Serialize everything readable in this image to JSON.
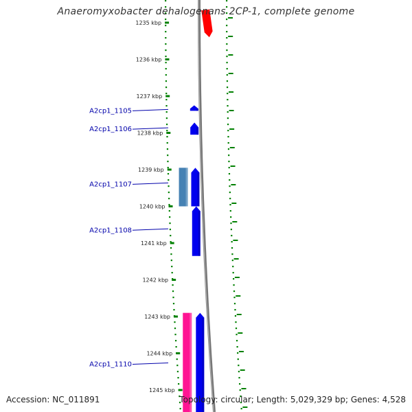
{
  "title": "Anaeromyxobacter dehalogenans 2CP-1, complete genome",
  "footer": {
    "accession": "Accession: NC_011891",
    "summary": "Topology: circular; Length: 5,029,329 bp; Genes: 4,528"
  },
  "scale_ticks": [
    {
      "label": "1235 kbp",
      "kbp": 1235
    },
    {
      "label": "1236 kbp",
      "kbp": 1236
    },
    {
      "label": "1237 kbp",
      "kbp": 1237
    },
    {
      "label": "1238 kbp",
      "kbp": 1238
    },
    {
      "label": "1239 kbp",
      "kbp": 1239
    },
    {
      "label": "1240 kbp",
      "kbp": 1240
    },
    {
      "label": "1241 kbp",
      "kbp": 1241
    },
    {
      "label": "1242 kbp",
      "kbp": 1242
    },
    {
      "label": "1243 kbp",
      "kbp": 1243
    },
    {
      "label": "1244 kbp",
      "kbp": 1244
    },
    {
      "label": "1245 kbp",
      "kbp": 1245
    }
  ],
  "gene_labels": [
    {
      "label": "A2cp1_1105",
      "kbp": 1237.4
    },
    {
      "label": "A2cp1_1106",
      "kbp": 1237.9
    },
    {
      "label": "A2cp1_1107",
      "kbp": 1239.4
    },
    {
      "label": "A2cp1_1108",
      "kbp": 1240.65
    },
    {
      "label": "A2cp1_1110",
      "kbp": 1244.3
    }
  ],
  "features": [
    {
      "track": "top",
      "start_kbp": 1234.65,
      "end_kbp": 1235.4,
      "color": "#ff0000",
      "strand": "reverse"
    },
    {
      "track": "cds",
      "start_kbp": 1237.25,
      "end_kbp": 1237.4,
      "color": "#0000ee",
      "strand": "forward"
    },
    {
      "track": "cds",
      "start_kbp": 1237.72,
      "end_kbp": 1238.05,
      "color": "#0000ee",
      "strand": "forward"
    },
    {
      "track": "cds",
      "start_kbp": 1238.95,
      "end_kbp": 1240.0,
      "color": "#0000ee",
      "strand": "forward"
    },
    {
      "track": "cds",
      "start_kbp": 1240.0,
      "end_kbp": 1241.35,
      "color": "#0000ee",
      "strand": "forward"
    },
    {
      "track": "cds",
      "start_kbp": 1242.9,
      "end_kbp": 1245.65,
      "color": "#0000ee",
      "strand": "forward"
    },
    {
      "track": "rna",
      "start_kbp": 1238.95,
      "end_kbp": 1240.0,
      "color": "#4682b4",
      "strand": "none"
    },
    {
      "track": "rna",
      "start_kbp": 1242.9,
      "end_kbp": 1245.65,
      "color": "#ff1493",
      "strand": "none"
    }
  ],
  "colors": {
    "label_text": "#0000aa",
    "tick_green": "#008000",
    "backbone": "#888888"
  }
}
